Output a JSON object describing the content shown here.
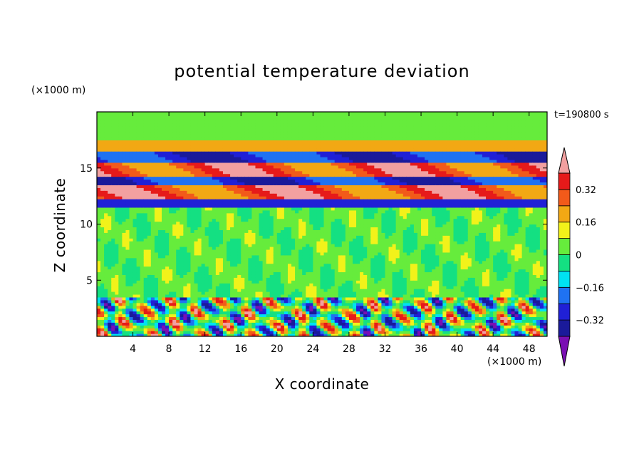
{
  "chart_data": {
    "type": "heatmap",
    "title": "potential temperature deviation",
    "xlabel": "X coordinate",
    "ylabel": "Z coordinate",
    "x_unit": "(×1000 m)",
    "y_unit": "(×1000 m)",
    "time_label": "t=190800 s",
    "xlim": [
      0,
      50
    ],
    "ylim": [
      0,
      20
    ],
    "x_ticks": [
      4,
      8,
      12,
      16,
      20,
      24,
      28,
      32,
      36,
      40,
      44,
      48
    ],
    "y_ticks": [
      5,
      10,
      15
    ],
    "colorbar": {
      "levels": [
        -0.4,
        -0.32,
        -0.24,
        -0.16,
        -0.08,
        0,
        0.08,
        0.16,
        0.24,
        0.32,
        0.4
      ],
      "tick_labels": [
        "0.32",
        "0.16",
        "0",
        "−0.16",
        "−0.32"
      ],
      "tick_values": [
        0.32,
        0.16,
        0,
        -0.16,
        -0.32
      ],
      "colors": [
        "#7a0fb3",
        "#1a1a9a",
        "#2020d6",
        "#1f72f2",
        "#00e2f2",
        "#14e082",
        "#66ec3c",
        "#f2f21a",
        "#f2a814",
        "#f25a1a",
        "#e61a1a",
        "#f2a0a0"
      ]
    },
    "bands": [
      {
        "y": [
          17.5,
          20.0
        ],
        "value": 0.0
      },
      {
        "y": [
          16.6,
          17.5
        ],
        "value": 0.2
      },
      {
        "y": [
          15.6,
          16.6
        ],
        "value": -0.36
      },
      {
        "y": [
          14.2,
          15.6
        ],
        "value": 0.42
      },
      {
        "y": [
          13.4,
          14.2
        ],
        "value": -0.36
      },
      {
        "y": [
          12.2,
          13.4
        ],
        "value": 0.42
      },
      {
        "y": [
          11.6,
          12.2
        ],
        "value": -0.3
      },
      {
        "y": [
          3.6,
          11.6
        ],
        "value": 0.02
      },
      {
        "y": [
          0.0,
          3.6
        ],
        "value": 0.0
      }
    ]
  }
}
